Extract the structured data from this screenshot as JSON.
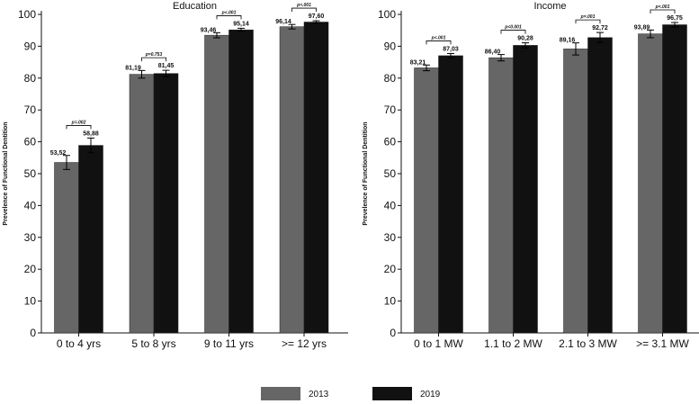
{
  "legend": [
    {
      "label": "2013",
      "color": "#666666"
    },
    {
      "label": "2019",
      "color": "#111111"
    }
  ],
  "chart_data": [
    {
      "type": "bar",
      "title": "Education",
      "ylabel": "Prevelence of Functional Dentition",
      "xlabel": "",
      "ylim": [
        0,
        100
      ],
      "yticks": [
        0,
        10,
        20,
        30,
        40,
        50,
        60,
        70,
        80,
        90,
        100
      ],
      "grid": false,
      "legend_position": "bottom",
      "categories": [
        "0 to 4 yrs",
        "5 to 8 yrs",
        "9 to 11 yrs",
        ">= 12 yrs"
      ],
      "series": [
        {
          "name": "2013",
          "color": "#666666",
          "values": [
            53.52,
            81.19,
            93.46,
            96.14
          ],
          "value_labels": [
            "53,52",
            "81,19",
            "93,46",
            "96,14"
          ],
          "error": [
            2.2,
            1.2,
            0.8,
            0.7
          ]
        },
        {
          "name": "2019",
          "color": "#111111",
          "values": [
            58.88,
            81.45,
            95.14,
            97.6
          ],
          "value_labels": [
            "58,88",
            "81,45",
            "95,14",
            "97,60"
          ],
          "error": [
            2.3,
            1.0,
            0.5,
            0.4
          ]
        }
      ],
      "p_values": [
        "p=.002",
        "p=0.753",
        "p<.001",
        "p<.001"
      ]
    },
    {
      "type": "bar",
      "title": "Income",
      "ylabel": "Prevelence of Functional Dentition",
      "xlabel": "",
      "ylim": [
        0,
        100
      ],
      "yticks": [
        0,
        10,
        20,
        30,
        40,
        50,
        60,
        70,
        80,
        90,
        100
      ],
      "grid": false,
      "legend_position": "bottom",
      "categories": [
        "0 to 1 MW",
        "1.1 to 2 MW",
        "2.1 to 3 MW",
        ">= 3.1 MW"
      ],
      "series": [
        {
          "name": "2013",
          "color": "#666666",
          "values": [
            83.21,
            86.4,
            89.16,
            93.89
          ],
          "value_labels": [
            "83,21",
            "86,40",
            "89,16",
            "93,89"
          ],
          "error": [
            0.9,
            1.0,
            1.9,
            1.2
          ]
        },
        {
          "name": "2019",
          "color": "#111111",
          "values": [
            87.03,
            90.28,
            92.72,
            96.75
          ],
          "value_labels": [
            "87,03",
            "90,28",
            "92,72",
            "96,75"
          ],
          "error": [
            0.7,
            0.8,
            1.6,
            0.7
          ]
        }
      ],
      "p_values": [
        "p<.001",
        "p<0.001",
        "p=.001",
        "p<.001"
      ]
    }
  ]
}
